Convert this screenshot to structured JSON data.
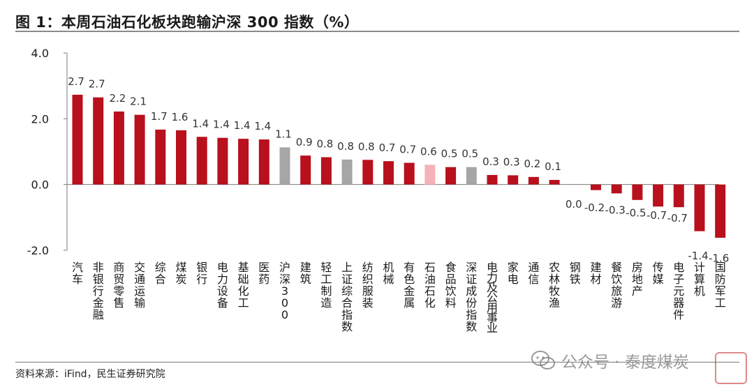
{
  "header": {
    "title": "图 1：本周石油石化板块跑输沪深 300 指数（%）"
  },
  "footer": {
    "source": "资料来源：iFind，民生证券研究院"
  },
  "watermark": {
    "text": "公众号 · 泰度煤炭"
  },
  "colors": {
    "default": "#b8101c",
    "index": "#a6a6a6",
    "highlight": "#f4b3b8"
  },
  "chart_data": {
    "type": "bar",
    "title": "图 1：本周石油石化板块跑输沪深 300 指数（%）",
    "ylim": [
      -2.0,
      4.0
    ],
    "yticks": [
      4.0,
      2.0,
      0.0,
      -2.0
    ],
    "ytick_labels": [
      "4.0",
      "2.0",
      "0.0",
      "-2.0"
    ],
    "categories": [
      "汽车",
      "非银行金融",
      "商贸零售",
      "交通运输",
      "综合",
      "煤炭",
      "银行",
      "电力设备",
      "基础化工",
      "医药",
      "沪深300",
      "建筑",
      "轻工制造",
      "上证综合指数",
      "纺织服装",
      "机械",
      "有色金属",
      "石油石化",
      "食品饮料",
      "深证成份指数",
      "电力及公用事业",
      "家电",
      "通信",
      "农林牧渔",
      "钢铁",
      "建材",
      "餐饮旅游",
      "房地产",
      "传媒",
      "电子元器件",
      "计算机",
      "国防军工"
    ],
    "values": [
      2.73,
      2.65,
      2.22,
      2.12,
      1.67,
      1.65,
      1.45,
      1.42,
      1.39,
      1.37,
      1.13,
      0.88,
      0.83,
      0.76,
      0.75,
      0.71,
      0.66,
      0.6,
      0.53,
      0.53,
      0.29,
      0.28,
      0.23,
      0.14,
      0.0,
      -0.17,
      -0.27,
      -0.47,
      -0.67,
      -0.69,
      -1.42,
      -1.62
    ],
    "value_labels": [
      "2.7",
      "2.7",
      "2.2",
      "2.1",
      "1.7",
      "1.6",
      "1.4",
      "1.4",
      "1.4",
      "1.4",
      "1.1",
      "0.9",
      "0.8",
      "0.8",
      "0.8",
      "0.7",
      "0.7",
      "0.6",
      "0.5",
      "0.5",
      "0.3",
      "0.3",
      "0.2",
      "0.1",
      "0.0",
      "-0.2",
      "-0.3",
      "-0.5",
      "-0.7",
      "-0.7",
      "-1.4",
      "-1.6"
    ],
    "bar_kind": [
      "default",
      "default",
      "default",
      "default",
      "default",
      "default",
      "default",
      "default",
      "default",
      "default",
      "index",
      "default",
      "default",
      "index",
      "default",
      "default",
      "default",
      "highlight",
      "default",
      "index",
      "default",
      "default",
      "default",
      "default",
      "default",
      "default",
      "default",
      "default",
      "default",
      "default",
      "default",
      "default"
    ],
    "grid": false,
    "legend": "none"
  }
}
